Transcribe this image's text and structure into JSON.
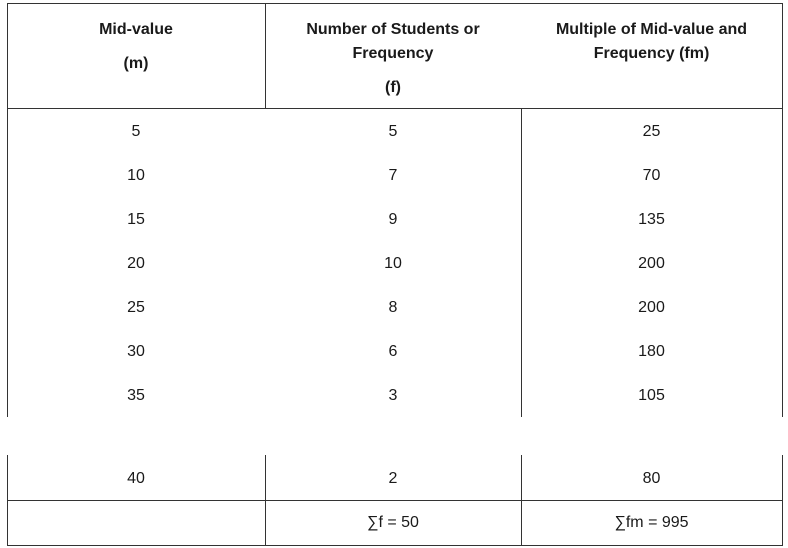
{
  "headers": {
    "col1": [
      "Mid-value",
      "(m)"
    ],
    "col2": [
      "Number of Students or",
      "Frequency",
      "(f)"
    ],
    "col3": [
      "Multiple of Mid-value and",
      "Frequency (fm)"
    ]
  },
  "rows": [
    [
      "5",
      "5",
      "25"
    ],
    [
      "10",
      "7",
      "70"
    ],
    [
      "15",
      "9",
      "135"
    ],
    [
      "20",
      "10",
      "200"
    ],
    [
      "25",
      "8",
      "200"
    ],
    [
      "30",
      "6",
      "180"
    ],
    [
      "35",
      "3",
      "105"
    ],
    [
      "40",
      "2",
      "80"
    ]
  ],
  "totals": {
    "col1": "",
    "col2": "∑f = 50",
    "col3": "∑fm = 995"
  }
}
